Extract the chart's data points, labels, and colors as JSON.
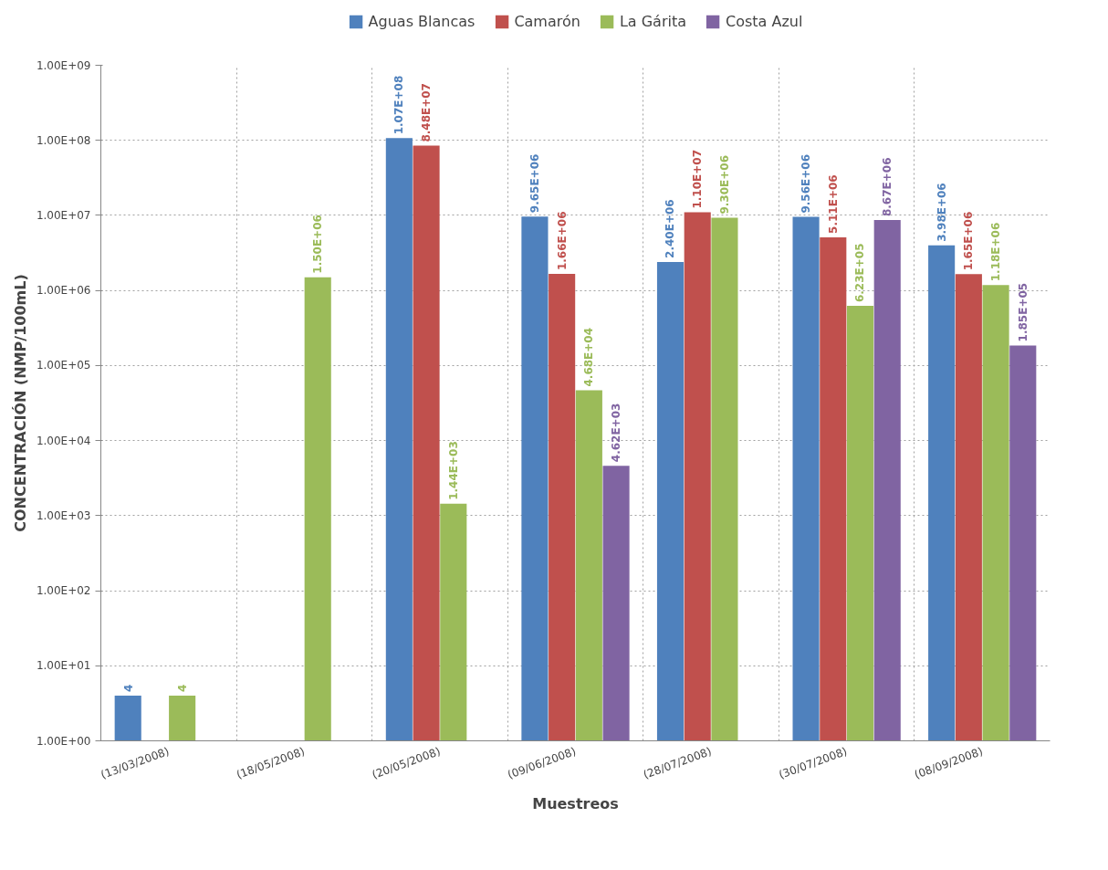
{
  "chart_data": {
    "type": "bar",
    "xlabel": "Muestreos",
    "ylabel": "CONCENTRACIÓN (NMP/100mL)",
    "categories": [
      "(13/03/2008)",
      "(18/05/2008)",
      "(20/05/2008)",
      "(09/06/2008)",
      "(28/07/2008)",
      "(30/07/2008)",
      "(08/09/2008)"
    ],
    "series": [
      {
        "name": "Aguas Blancas",
        "color": "#4f81bd",
        "values": [
          4,
          null,
          107000000.0,
          9650000.0,
          2400000.0,
          9560000.0,
          3980000.0
        ],
        "value_labels": [
          "4",
          null,
          "1.07E+08",
          "9.65E+06",
          "2.40E+06",
          "9.56E+06",
          "3.98E+06"
        ]
      },
      {
        "name": "Camarón",
        "color": "#c0504d",
        "values": [
          null,
          null,
          84800000.0,
          1660000.0,
          11000000.0,
          5110000.0,
          1650000.0
        ],
        "value_labels": [
          null,
          null,
          "8.48E+07",
          "1.66E+06",
          "1.10E+07",
          "5.11E+06",
          "1.65E+06"
        ]
      },
      {
        "name": "La Gárita",
        "color": "#9bbb59",
        "values": [
          4,
          1500000.0,
          1440.0,
          46800.0,
          9300000.0,
          623000.0,
          1180000.0
        ],
        "value_labels": [
          "4",
          "1.50E+06",
          "1.44E+03",
          "4.68E+04",
          "9.30E+06",
          "6.23E+05",
          "1.18E+06"
        ]
      },
      {
        "name": "Costa Azul",
        "color": "#8064a2",
        "values": [
          null,
          null,
          null,
          4620.0,
          null,
          8670000.0,
          185000.0
        ],
        "value_labels": [
          null,
          null,
          null,
          "4.62E+03",
          null,
          "8.67E+06",
          "1.85E+05"
        ]
      }
    ],
    "log": "y",
    "ylim": [
      1,
      1000000000.0
    ],
    "yticks": [
      {
        "value": 1,
        "label": "1.00E+00"
      },
      {
        "value": 10,
        "label": "1.00E+01"
      },
      {
        "value": 100,
        "label": "1.00E+02"
      },
      {
        "value": 1000,
        "label": "1.00E+03"
      },
      {
        "value": 10000,
        "label": "1.00E+04"
      },
      {
        "value": 100000,
        "label": "1.00E+05"
      },
      {
        "value": 1000000,
        "label": "1.00E+06"
      },
      {
        "value": 10000000,
        "label": "1.00E+07"
      },
      {
        "value": 100000000,
        "label": "1.00E+08"
      },
      {
        "value": 1000000000,
        "label": "1.00E+09"
      }
    ],
    "grid": true,
    "legend": "top"
  }
}
